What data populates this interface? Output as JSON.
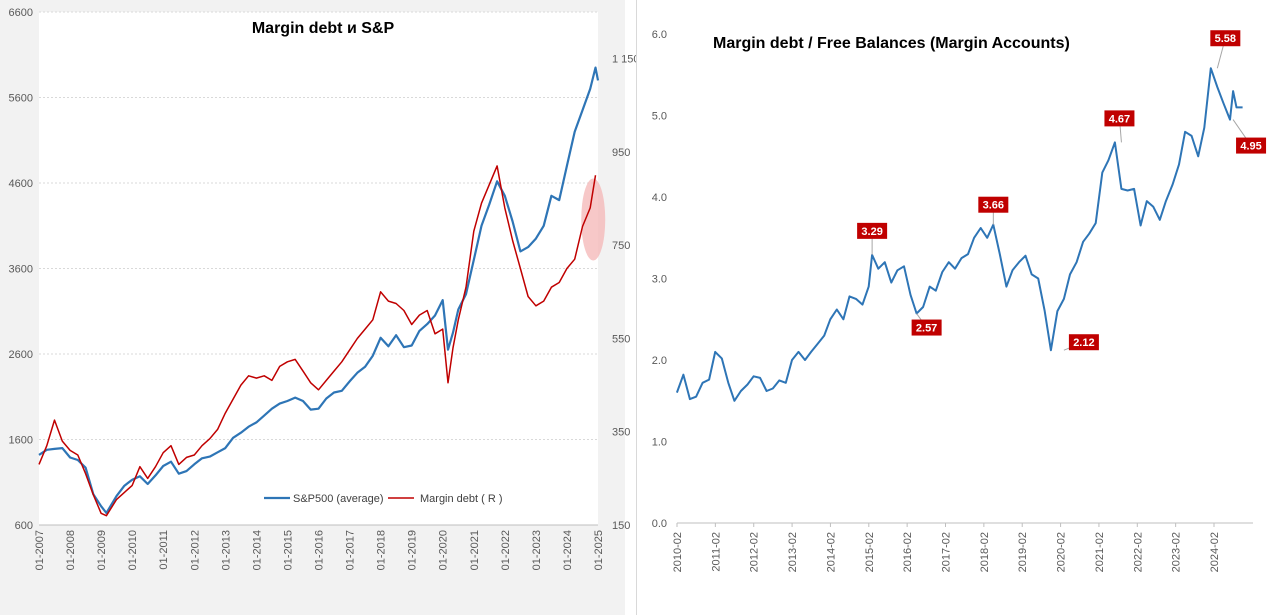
{
  "chart_data": [
    {
      "type": "line",
      "title": "Margin debt и S&P",
      "xlabel": "",
      "ylabel": "",
      "grid": true,
      "legend_position": "bottom",
      "x_ticks": [
        "01-2007",
        "01-2008",
        "01-2009",
        "01-2010",
        "01-2011",
        "01-2012",
        "01-2013",
        "01-2014",
        "01-2015",
        "01-2016",
        "01-2017",
        "01-2018",
        "01-2019",
        "01-2020",
        "01-2021",
        "01-2022",
        "01-2023",
        "01-2024",
        "01-2025"
      ],
      "x_range": [
        2007.0,
        2025.0
      ],
      "y_left_ticks": [
        "600",
        "1600",
        "2600",
        "3600",
        "4600",
        "5600",
        "6600"
      ],
      "y_left_range": [
        600,
        6600
      ],
      "y_right_ticks": [
        "150",
        "350",
        "550",
        "750",
        "950",
        "1 150"
      ],
      "y_right_range": [
        150,
        1250
      ],
      "highlight": {
        "x": 2024.75,
        "y_right": 805,
        "color": "#f4b6b6"
      },
      "series": [
        {
          "name": "S&P500 (average)",
          "axis": "left",
          "color": "#2e75b6",
          "x": [
            2007.0,
            2007.25,
            2007.5,
            2007.75,
            2008.0,
            2008.25,
            2008.5,
            2008.75,
            2009.0,
            2009.17,
            2009.5,
            2009.75,
            2010.0,
            2010.25,
            2010.5,
            2010.75,
            2011.0,
            2011.25,
            2011.5,
            2011.75,
            2012.0,
            2012.25,
            2012.5,
            2012.75,
            2013.0,
            2013.25,
            2013.5,
            2013.75,
            2014.0,
            2014.25,
            2014.5,
            2014.75,
            2015.0,
            2015.25,
            2015.5,
            2015.75,
            2016.0,
            2016.25,
            2016.5,
            2016.75,
            2017.0,
            2017.25,
            2017.5,
            2017.75,
            2018.0,
            2018.25,
            2018.5,
            2018.75,
            2019.0,
            2019.25,
            2019.5,
            2019.75,
            2020.0,
            2020.17,
            2020.33,
            2020.5,
            2020.75,
            2021.0,
            2021.25,
            2021.5,
            2021.75,
            2022.0,
            2022.25,
            2022.5,
            2022.75,
            2023.0,
            2023.25,
            2023.5,
            2023.75,
            2024.0,
            2024.25,
            2024.5,
            2024.75,
            2024.92,
            2025.0
          ],
          "values": [
            1420,
            1480,
            1490,
            1500,
            1390,
            1360,
            1270,
            960,
            820,
            740,
            940,
            1060,
            1130,
            1170,
            1080,
            1180,
            1290,
            1340,
            1200,
            1230,
            1310,
            1380,
            1400,
            1450,
            1500,
            1620,
            1680,
            1750,
            1800,
            1880,
            1960,
            2020,
            2050,
            2090,
            2050,
            1950,
            1960,
            2080,
            2150,
            2170,
            2280,
            2380,
            2450,
            2580,
            2790,
            2690,
            2820,
            2680,
            2700,
            2870,
            2950,
            3050,
            3230,
            2650,
            2850,
            3120,
            3300,
            3700,
            4100,
            4350,
            4620,
            4450,
            4150,
            3800,
            3850,
            3950,
            4100,
            4450,
            4400,
            4800,
            5200,
            5450,
            5700,
            5950,
            5800
          ]
        },
        {
          "name": "Margin debt ( R )",
          "axis": "right",
          "color": "#c00000",
          "x": [
            2007.0,
            2007.25,
            2007.5,
            2007.75,
            2008.0,
            2008.25,
            2008.5,
            2008.75,
            2009.0,
            2009.17,
            2009.5,
            2009.75,
            2010.0,
            2010.25,
            2010.5,
            2010.75,
            2011.0,
            2011.25,
            2011.5,
            2011.75,
            2012.0,
            2012.25,
            2012.5,
            2012.75,
            2013.0,
            2013.25,
            2013.5,
            2013.75,
            2014.0,
            2014.25,
            2014.5,
            2014.75,
            2015.0,
            2015.25,
            2015.5,
            2015.75,
            2016.0,
            2016.25,
            2016.5,
            2016.75,
            2017.0,
            2017.25,
            2017.5,
            2017.75,
            2018.0,
            2018.25,
            2018.5,
            2018.75,
            2019.0,
            2019.25,
            2019.5,
            2019.75,
            2020.0,
            2020.17,
            2020.33,
            2020.5,
            2020.75,
            2021.0,
            2021.25,
            2021.5,
            2021.75,
            2022.0,
            2022.25,
            2022.5,
            2022.75,
            2023.0,
            2023.25,
            2023.5,
            2023.75,
            2024.0,
            2024.25,
            2024.5,
            2024.75,
            2024.92
          ],
          "values": [
            280,
            320,
            375,
            330,
            310,
            300,
            260,
            215,
            175,
            170,
            205,
            220,
            235,
            275,
            250,
            275,
            305,
            320,
            280,
            295,
            300,
            320,
            335,
            355,
            390,
            420,
            450,
            470,
            465,
            470,
            460,
            490,
            500,
            505,
            480,
            455,
            440,
            460,
            480,
            500,
            525,
            550,
            570,
            590,
            650,
            630,
            625,
            610,
            580,
            600,
            610,
            560,
            570,
            455,
            530,
            590,
            660,
            780,
            840,
            880,
            920,
            830,
            760,
            700,
            640,
            620,
            630,
            660,
            670,
            700,
            720,
            790,
            830,
            900
          ]
        }
      ]
    },
    {
      "type": "line",
      "title": "Margin debt / Free Balances (Margin Accounts)",
      "xlabel": "",
      "ylabel": "",
      "grid": false,
      "x_ticks": [
        "2010-02",
        "2011-02",
        "2012-02",
        "2013-02",
        "2014-02",
        "2015-02",
        "2016-02",
        "2017-02",
        "2018-02",
        "2019-02",
        "2020-02",
        "2021-02",
        "2022-02",
        "2023-02",
        "2024-02"
      ],
      "x_range": [
        2010.083,
        2025.1
      ],
      "y_ticks": [
        "0.0",
        "1.0",
        "2.0",
        "3.0",
        "4.0",
        "5.0",
        "6.0"
      ],
      "y_range": [
        0.0,
        6.0
      ],
      "annotations": [
        {
          "text": "3.29",
          "x": 2015.17,
          "y": 3.29
        },
        {
          "text": "2.57",
          "x": 2016.33,
          "y": 2.57
        },
        {
          "text": "3.66",
          "x": 2018.33,
          "y": 3.66
        },
        {
          "text": "2.12",
          "x": 2020.17,
          "y": 2.12
        },
        {
          "text": "4.67",
          "x": 2021.67,
          "y": 4.67
        },
        {
          "text": "5.58",
          "x": 2024.17,
          "y": 5.58
        },
        {
          "text": "4.95",
          "x": 2024.58,
          "y": 4.95
        }
      ],
      "series": [
        {
          "color": "#2e75b6",
          "x": [
            2010.08,
            2010.25,
            2010.42,
            2010.58,
            2010.75,
            2010.92,
            2011.08,
            2011.25,
            2011.42,
            2011.58,
            2011.75,
            2011.92,
            2012.08,
            2012.25,
            2012.42,
            2012.58,
            2012.75,
            2012.92,
            2013.08,
            2013.25,
            2013.42,
            2013.58,
            2013.75,
            2013.92,
            2014.08,
            2014.25,
            2014.42,
            2014.58,
            2014.75,
            2014.92,
            2015.08,
            2015.17,
            2015.33,
            2015.5,
            2015.67,
            2015.83,
            2016.0,
            2016.17,
            2016.33,
            2016.5,
            2016.67,
            2016.83,
            2017.0,
            2017.17,
            2017.33,
            2017.5,
            2017.67,
            2017.83,
            2018.0,
            2018.17,
            2018.33,
            2018.5,
            2018.67,
            2018.83,
            2019.0,
            2019.17,
            2019.33,
            2019.5,
            2019.67,
            2019.83,
            2020.0,
            2020.17,
            2020.33,
            2020.5,
            2020.67,
            2020.83,
            2021.0,
            2021.17,
            2021.33,
            2021.5,
            2021.67,
            2021.83,
            2022.0,
            2022.17,
            2022.33,
            2022.5,
            2022.67,
            2022.83,
            2023.0,
            2023.17,
            2023.33,
            2023.5,
            2023.67,
            2023.83,
            2024.0,
            2024.17,
            2024.33,
            2024.5,
            2024.58,
            2024.67,
            2024.83
          ],
          "values": [
            1.6,
            1.82,
            1.52,
            1.55,
            1.72,
            1.76,
            2.1,
            2.02,
            1.72,
            1.5,
            1.62,
            1.7,
            1.8,
            1.78,
            1.62,
            1.65,
            1.75,
            1.72,
            2.0,
            2.1,
            2.0,
            2.1,
            2.2,
            2.3,
            2.5,
            2.62,
            2.5,
            2.78,
            2.75,
            2.68,
            2.9,
            3.29,
            3.12,
            3.2,
            2.95,
            3.1,
            3.15,
            2.8,
            2.57,
            2.65,
            2.9,
            2.85,
            3.08,
            3.2,
            3.12,
            3.25,
            3.3,
            3.5,
            3.62,
            3.5,
            3.66,
            3.3,
            2.9,
            3.1,
            3.2,
            3.28,
            3.05,
            3.0,
            2.6,
            2.12,
            2.6,
            2.75,
            3.05,
            3.2,
            3.45,
            3.55,
            3.68,
            4.3,
            4.45,
            4.67,
            4.1,
            4.08,
            4.1,
            3.65,
            3.95,
            3.88,
            3.72,
            3.95,
            4.15,
            4.4,
            4.8,
            4.75,
            4.5,
            4.85,
            5.58,
            5.35,
            5.15,
            4.95,
            5.3,
            5.1,
            5.1
          ]
        }
      ]
    }
  ]
}
